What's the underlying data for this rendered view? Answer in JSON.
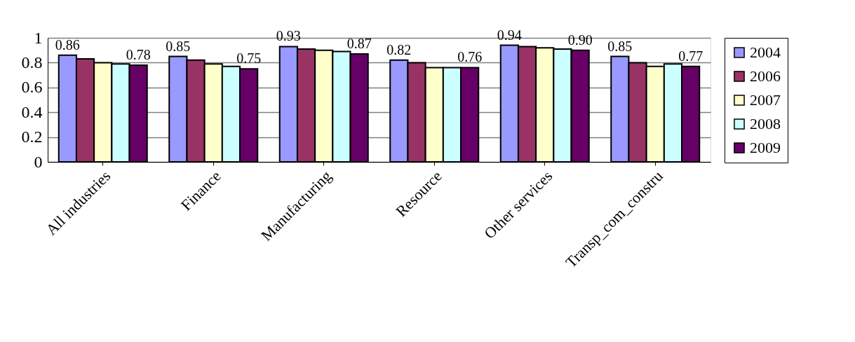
{
  "chart_data": {
    "type": "bar",
    "categories": [
      "All industries",
      "Finance",
      "Manufacturing",
      "Resource",
      "Other services",
      "Transp_com_constru"
    ],
    "series": [
      {
        "name": "2004",
        "color": "#9999ff",
        "values": [
          0.86,
          0.85,
          0.93,
          0.82,
          0.94,
          0.85
        ],
        "value_labels": [
          "0.86",
          "0.85",
          "0.93",
          "0.82",
          "0.94",
          "0.85"
        ]
      },
      {
        "name": "2006",
        "color": "#993366",
        "values": [
          0.83,
          0.82,
          0.91,
          0.8,
          0.93,
          0.8
        ]
      },
      {
        "name": "2007",
        "color": "#ffffcc",
        "values": [
          0.8,
          0.79,
          0.9,
          0.76,
          0.92,
          0.77
        ]
      },
      {
        "name": "2008",
        "color": "#ccffff",
        "values": [
          0.79,
          0.77,
          0.89,
          0.76,
          0.91,
          0.79
        ]
      },
      {
        "name": "2009",
        "color": "#660066",
        "values": [
          0.78,
          0.75,
          0.87,
          0.76,
          0.9,
          0.77
        ],
        "value_labels": [
          "0.78",
          "0.75",
          "0.87",
          "0.76",
          "0.90",
          "0.77"
        ]
      }
    ],
    "ylim": [
      0,
      1
    ],
    "yticks": [
      0,
      0.2,
      0.4,
      0.6,
      0.8,
      1
    ],
    "grid": "y",
    "legend": "right"
  }
}
